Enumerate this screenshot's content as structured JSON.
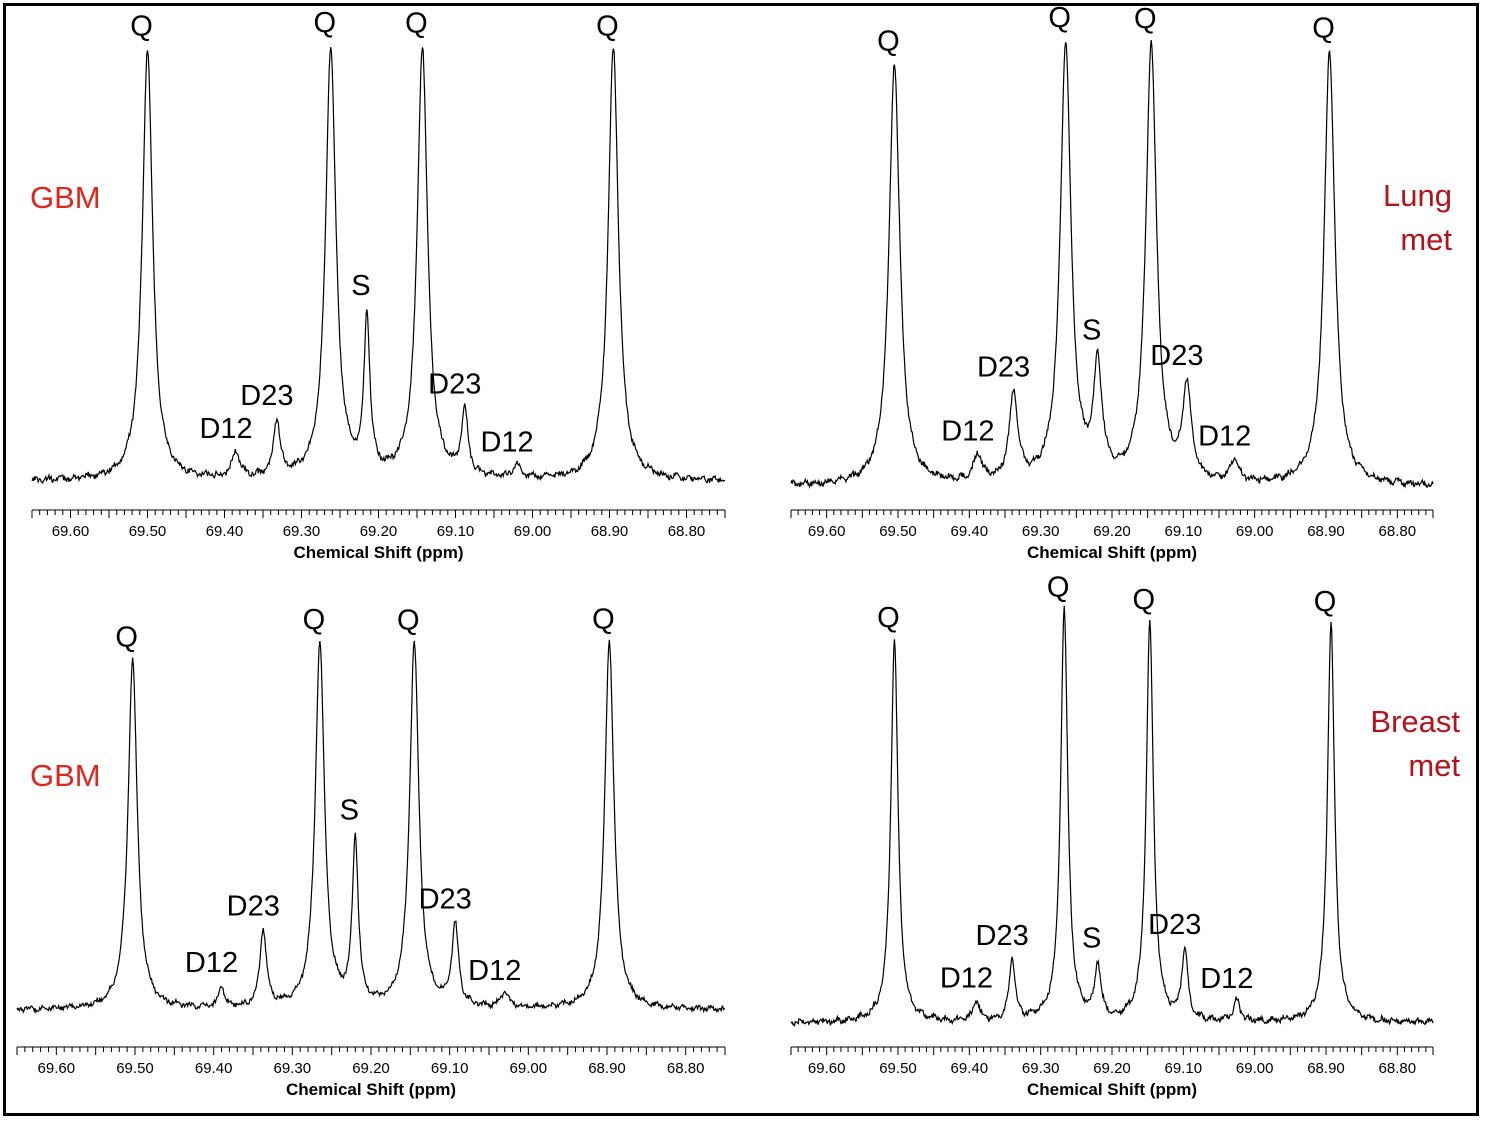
{
  "colors": {
    "label_red": "#e0251d",
    "label_dark_red": "#b5121b",
    "trace": "#000000"
  },
  "chart_data": [
    {
      "type": "line",
      "panel": "top-left",
      "label": "GBM",
      "label_color": "#e0251d",
      "xlabel": "Chemical Shift (ppm)",
      "xlim": [
        69.65,
        68.75
      ],
      "x_reversed": true,
      "xticks": [
        "69.60",
        "69.50",
        "69.40",
        "69.30",
        "69.20",
        "69.10",
        "69.00",
        "68.90",
        "68.80"
      ],
      "baseline": 0.02,
      "peaks": [
        {
          "label": "Q",
          "ppm": 69.5,
          "height": 1.0,
          "width": 0.008
        },
        {
          "label": "D12",
          "ppm": 69.385,
          "height": 0.06,
          "width": 0.006
        },
        {
          "label": "D23",
          "ppm": 69.332,
          "height": 0.13,
          "width": 0.005
        },
        {
          "label": "Q",
          "ppm": 69.262,
          "height": 1.0,
          "width": 0.008
        },
        {
          "label": "S",
          "ppm": 69.215,
          "height": 0.36,
          "width": 0.0045
        },
        {
          "label": "Q",
          "ppm": 69.143,
          "height": 1.0,
          "width": 0.008
        },
        {
          "label": "D23",
          "ppm": 69.088,
          "height": 0.15,
          "width": 0.005
        },
        {
          "label": "D12",
          "ppm": 69.02,
          "height": 0.03,
          "width": 0.006
        },
        {
          "label": "Q",
          "ppm": 68.895,
          "height": 1.0,
          "width": 0.008
        }
      ]
    },
    {
      "type": "line",
      "panel": "top-right",
      "label": "Lung met",
      "label_lines": [
        "Lung",
        "met"
      ],
      "label_color": "#b5121b",
      "xlabel": "Chemical Shift (ppm)",
      "xlim": [
        69.65,
        68.75
      ],
      "x_reversed": true,
      "xticks": [
        "69.60",
        "69.50",
        "69.40",
        "69.30",
        "69.20",
        "69.10",
        "69.00",
        "68.90",
        "68.80"
      ],
      "baseline": 0.02,
      "peaks": [
        {
          "label": "Q",
          "ppm": 69.505,
          "height": 0.96,
          "width": 0.009
        },
        {
          "label": "D12",
          "ppm": 69.388,
          "height": 0.06,
          "width": 0.007
        },
        {
          "label": "D23",
          "ppm": 69.338,
          "height": 0.2,
          "width": 0.007
        },
        {
          "label": "Q",
          "ppm": 69.265,
          "height": 1.0,
          "width": 0.009
        },
        {
          "label": "S",
          "ppm": 69.22,
          "height": 0.25,
          "width": 0.007
        },
        {
          "label": "Q",
          "ppm": 69.145,
          "height": 1.0,
          "width": 0.009
        },
        {
          "label": "D23",
          "ppm": 69.095,
          "height": 0.21,
          "width": 0.007
        },
        {
          "label": "D12",
          "ppm": 69.028,
          "height": 0.05,
          "width": 0.007
        },
        {
          "label": "Q",
          "ppm": 68.895,
          "height": 0.99,
          "width": 0.009
        }
      ]
    },
    {
      "type": "line",
      "panel": "bottom-left",
      "label": "GBM",
      "label_color": "#e0251d",
      "xlabel": "Chemical Shift (ppm)",
      "xlim": [
        69.65,
        68.75
      ],
      "x_reversed": true,
      "xticks": [
        "69.60",
        "69.50",
        "69.40",
        "69.30",
        "69.20",
        "69.10",
        "69.00",
        "68.90",
        "68.80"
      ],
      "baseline": 0.03,
      "peaks": [
        {
          "label": "Q",
          "ppm": 69.503,
          "height": 0.95,
          "width": 0.007
        },
        {
          "label": "D12",
          "ppm": 69.39,
          "height": 0.06,
          "width": 0.004
        },
        {
          "label": "D23",
          "ppm": 69.337,
          "height": 0.21,
          "width": 0.005
        },
        {
          "label": "Q",
          "ppm": 69.265,
          "height": 0.99,
          "width": 0.007
        },
        {
          "label": "S",
          "ppm": 69.22,
          "height": 0.45,
          "width": 0.0045
        },
        {
          "label": "Q",
          "ppm": 69.145,
          "height": 0.99,
          "width": 0.007
        },
        {
          "label": "D23",
          "ppm": 69.093,
          "height": 0.22,
          "width": 0.005
        },
        {
          "label": "D12",
          "ppm": 69.03,
          "height": 0.04,
          "width": 0.006
        },
        {
          "label": "Q",
          "ppm": 68.897,
          "height": 1.0,
          "width": 0.007
        }
      ]
    },
    {
      "type": "line",
      "panel": "bottom-right",
      "label": "Breast met",
      "label_lines": [
        "Breast",
        "met"
      ],
      "label_color": "#b5121b",
      "xlabel": "Chemical Shift (ppm)",
      "xlim": [
        69.65,
        68.75
      ],
      "x_reversed": true,
      "xticks": [
        "69.60",
        "69.50",
        "69.40",
        "69.30",
        "69.20",
        "69.10",
        "69.00",
        "68.90",
        "68.80"
      ],
      "baseline": 0.01,
      "peaks": [
        {
          "label": "Q",
          "ppm": 69.505,
          "height": 0.93,
          "width": 0.006
        },
        {
          "label": "D12",
          "ppm": 69.39,
          "height": 0.05,
          "width": 0.005
        },
        {
          "label": "D23",
          "ppm": 69.34,
          "height": 0.15,
          "width": 0.005
        },
        {
          "label": "Q",
          "ppm": 69.267,
          "height": 1.0,
          "width": 0.006
        },
        {
          "label": "S",
          "ppm": 69.22,
          "height": 0.13,
          "width": 0.005
        },
        {
          "label": "Q",
          "ppm": 69.147,
          "height": 0.97,
          "width": 0.006
        },
        {
          "label": "D23",
          "ppm": 69.098,
          "height": 0.17,
          "width": 0.005
        },
        {
          "label": "D12",
          "ppm": 69.025,
          "height": 0.05,
          "width": 0.005
        },
        {
          "label": "Q",
          "ppm": 68.893,
          "height": 0.97,
          "width": 0.006
        }
      ]
    }
  ]
}
